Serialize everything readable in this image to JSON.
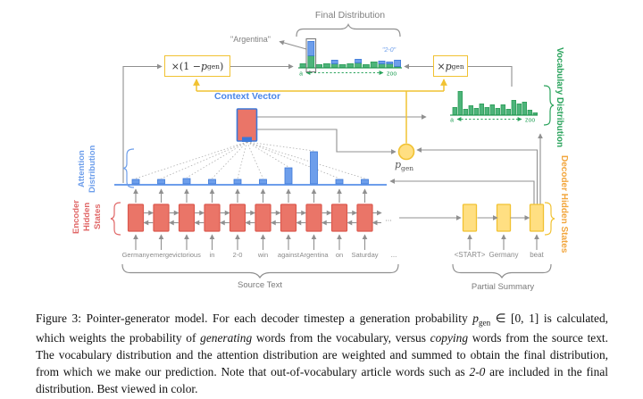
{
  "colors": {
    "green": "#2aa35c",
    "green_bar_fill": "#4db47a",
    "green_bar_stroke": "#2f9e5a",
    "blue": "#4a86e8",
    "blue_light": "#6d9eeb",
    "blue_dark": "#3c78d8",
    "red": "#e06666",
    "red_fill": "#ea7568",
    "red_stroke": "#dc594e",
    "gold": "#f1c232",
    "gold_fill": "#ffdf82",
    "orange_label": "#f2a63d",
    "wire": "#909090",
    "word_gray": "#8a8a8a"
  },
  "labels": {
    "final_distribution": "Final Distribution",
    "argentina": "\"Argentina\"",
    "two_zero": "\"2-0\"",
    "context_vector": "Context Vector",
    "attention_lines": [
      "Attention",
      "Distribution"
    ],
    "encoder_lines": [
      "Encoder",
      "Hidden",
      "States"
    ],
    "vocabulary": "Vocabulary Distribution",
    "decoder": "Decoder Hidden States",
    "source_text": "Source Text",
    "partial_summary": "Partial Summary",
    "ellipsis": "..."
  },
  "math": {
    "mult_left": [
      {
        "t": "×(1 − "
      },
      {
        "t": "p",
        "i": 1
      },
      {
        "t": "gen",
        "sub": 1
      },
      {
        "t": ")"
      }
    ],
    "mult_right": [
      {
        "t": "×"
      },
      {
        "t": "p",
        "i": 1
      },
      {
        "t": "gen",
        "sub": 1
      }
    ],
    "pgen": [
      {
        "t": "p",
        "i": 1
      },
      {
        "t": "gen",
        "sub": 1
      }
    ]
  },
  "axes": {
    "left": "a",
    "right": "zoo"
  },
  "source_words": [
    "Germany",
    "emerge",
    "victorious",
    "in",
    "2-0",
    "win",
    "against",
    "Argentina",
    "on",
    "Saturday"
  ],
  "decoder_words": [
    "<START>",
    "Germany",
    "beat"
  ],
  "distributions": {
    "final": {
      "green": [
        4,
        13,
        3,
        4,
        4,
        3,
        4,
        5,
        3,
        6,
        4,
        4,
        1
      ],
      "blue": [
        0,
        16,
        0,
        0,
        4,
        0,
        0,
        4,
        0,
        0,
        3,
        2,
        7
      ],
      "highlight_index": 1
    },
    "vocabulary": [
      8,
      26,
      6,
      10,
      7,
      12,
      8,
      11,
      7,
      11,
      6,
      16,
      12,
      14,
      5,
      2
    ],
    "attention": [
      5,
      5,
      6,
      5,
      5,
      5,
      18,
      36,
      5,
      5
    ]
  },
  "caption": [
    {
      "t": "Figure 3: Pointer-generator model. For each decoder timestep a generation probability "
    },
    {
      "t": "p",
      "i": 1
    },
    {
      "t": "gen",
      "sub": 1
    },
    {
      "t": " ∈ [0, 1] is calculated, which weights the probability of "
    },
    {
      "t": "generating",
      "i": 1
    },
    {
      "t": " words from the vocabulary, versus "
    },
    {
      "t": "copying",
      "i": 1
    },
    {
      "t": " words from the source text. The vocabulary distribution and the attention distribution are weighted and summed to obtain the final distribution, from which we make our prediction. Note that out-of-vocabulary article words such as "
    },
    {
      "t": "2-0",
      "i": 1
    },
    {
      "t": " are included in the final distribution. Best viewed in color."
    }
  ]
}
